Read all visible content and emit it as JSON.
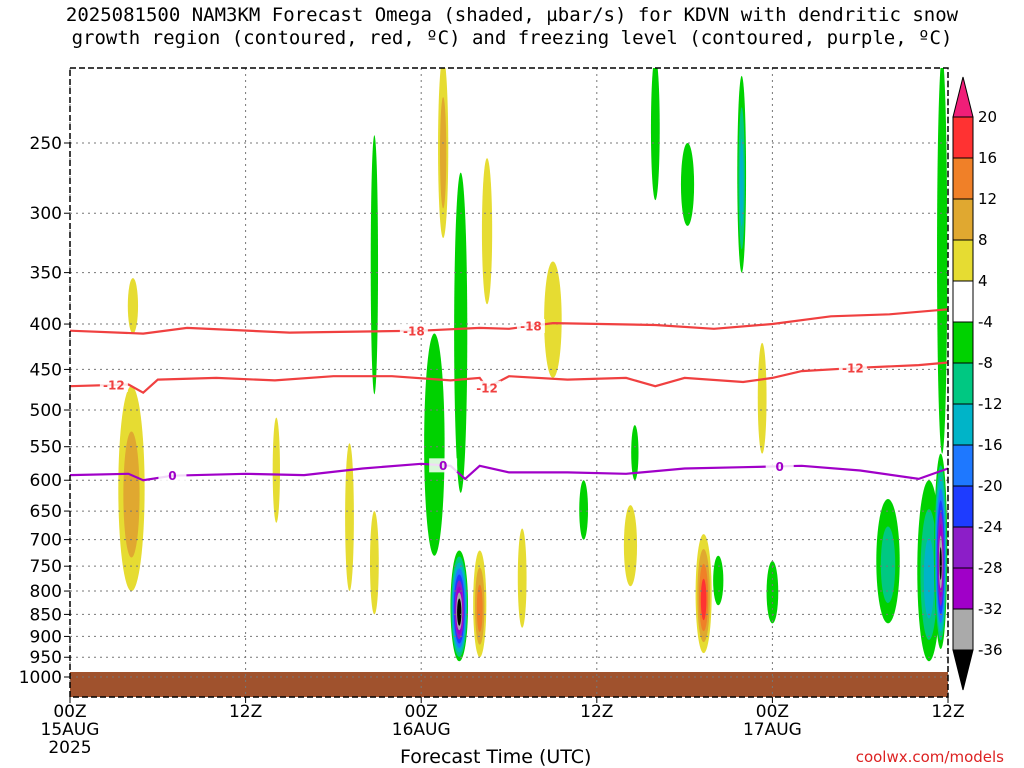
{
  "title": {
    "line1": "2025081500 NAM3KM Forecast Omega (shaded, µbar/s) for KDVN with dendritic snow",
    "line2": "growth region (contoured, red, ºC) and freezing level (contoured, purple, ºC)"
  },
  "credit": "coolwx.com/models",
  "chart_data": {
    "type": "time-height cross section",
    "xlabel": "Forecast Time (UTC)",
    "ylabel": "",
    "x_ticks": [
      {
        "hour": 0,
        "label": "00Z",
        "date": "15AUG",
        "year": "2025"
      },
      {
        "hour": 12,
        "label": "12Z",
        "date": "",
        "year": ""
      },
      {
        "hour": 24,
        "label": "00Z",
        "date": "16AUG",
        "year": ""
      },
      {
        "hour": 36,
        "label": "12Z",
        "date": "",
        "year": ""
      },
      {
        "hour": 48,
        "label": "00Z",
        "date": "17AUG",
        "year": ""
      },
      {
        "hour": 60,
        "label": "12Z",
        "date": "",
        "year": ""
      }
    ],
    "xlim": [
      0,
      60
    ],
    "y_ticks": [
      250,
      300,
      350,
      400,
      450,
      500,
      550,
      600,
      650,
      700,
      750,
      800,
      850,
      900,
      950,
      1000
    ],
    "ylim_hpa": [
      200,
      1000
    ],
    "y_scale": "log-pressure",
    "colorbar": {
      "ticks": [
        20,
        16,
        12,
        8,
        4,
        -4,
        -8,
        -12,
        -16,
        -20,
        -24,
        -28,
        -32,
        -36
      ],
      "bins": [
        {
          "from": 16,
          "to": 20,
          "color": "#ff3232"
        },
        {
          "from": 12,
          "to": 16,
          "color": "#f08028"
        },
        {
          "from": 8,
          "to": 12,
          "color": "#e0a830"
        },
        {
          "from": 4,
          "to": 8,
          "color": "#e6dc32"
        },
        {
          "from": -4,
          "to": 4,
          "color": "#ffffff"
        },
        {
          "from": -8,
          "to": -4,
          "color": "#00d200"
        },
        {
          "from": -12,
          "to": -8,
          "color": "#00c882"
        },
        {
          "from": -16,
          "to": -12,
          "color": "#00b4c8"
        },
        {
          "from": -20,
          "to": -16,
          "color": "#1e78ff"
        },
        {
          "from": -24,
          "to": -20,
          "color": "#1e3cff"
        },
        {
          "from": -28,
          "to": -24,
          "color": "#8c1ec8"
        },
        {
          "from": -32,
          "to": -28,
          "color": "#a000c8"
        },
        {
          "from": -36,
          "to": -32,
          "color": "#aaaaaa"
        }
      ],
      "overflow_high": "#f01e78",
      "overflow_low": "#000000"
    },
    "contours": [
      {
        "label": "-18",
        "color": "#f04040",
        "label_hours": [
          23.5,
          31.5
        ],
        "points": [
          [
            0,
            407
          ],
          [
            5,
            410
          ],
          [
            8,
            404
          ],
          [
            15,
            409
          ],
          [
            24,
            407
          ],
          [
            28,
            404
          ],
          [
            30,
            405
          ],
          [
            33,
            399
          ],
          [
            40,
            401
          ],
          [
            44,
            405
          ],
          [
            48,
            400
          ],
          [
            52,
            392
          ],
          [
            56,
            390
          ],
          [
            60,
            385
          ]
        ]
      },
      {
        "label": "-12",
        "color": "#f04040",
        "label_hours": [
          3,
          28.5,
          53.5
        ],
        "points": [
          [
            0,
            470
          ],
          [
            4,
            468
          ],
          [
            5,
            478
          ],
          [
            6,
            462
          ],
          [
            10,
            460
          ],
          [
            14,
            463
          ],
          [
            18,
            458
          ],
          [
            22,
            458
          ],
          [
            26,
            463
          ],
          [
            28,
            460
          ],
          [
            28.5,
            472
          ],
          [
            30,
            458
          ],
          [
            34,
            462
          ],
          [
            38,
            460
          ],
          [
            40,
            470
          ],
          [
            42,
            460
          ],
          [
            46,
            465
          ],
          [
            48,
            460
          ],
          [
            50,
            452
          ],
          [
            54,
            448
          ],
          [
            58,
            445
          ],
          [
            60,
            442
          ]
        ]
      },
      {
        "label": "0",
        "color": "#a000c8",
        "label_hours": [
          7,
          25.5,
          48.5
        ],
        "points": [
          [
            0,
            592
          ],
          [
            4,
            590
          ],
          [
            5,
            600
          ],
          [
            7,
            593
          ],
          [
            12,
            590
          ],
          [
            16,
            592
          ],
          [
            20,
            582
          ],
          [
            24,
            575
          ],
          [
            26,
            578
          ],
          [
            27,
            598
          ],
          [
            28,
            578
          ],
          [
            30,
            588
          ],
          [
            34,
            588
          ],
          [
            38,
            590
          ],
          [
            42,
            582
          ],
          [
            46,
            580
          ],
          [
            50,
            578
          ],
          [
            54,
            585
          ],
          [
            58,
            598
          ],
          [
            60,
            582
          ]
        ]
      }
    ],
    "omega_blobs": [
      {
        "t": 4.2,
        "p": 620,
        "dt": 0.9,
        "top": 470,
        "bot": 800,
        "v": 12
      },
      {
        "t": 4.3,
        "p": 380,
        "dt": 0.35,
        "top": 355,
        "bot": 410,
        "v": 5
      },
      {
        "t": 14.1,
        "p": 600,
        "dt": 0.25,
        "top": 510,
        "bot": 670,
        "v": 5
      },
      {
        "t": 19.1,
        "p": 700,
        "dt": 0.3,
        "top": 545,
        "bot": 800,
        "v": 6
      },
      {
        "t": 20.8,
        "p": 770,
        "dt": 0.3,
        "top": 650,
        "bot": 850,
        "v": 5
      },
      {
        "t": 20.8,
        "p": 380,
        "dt": 0.25,
        "top": 245,
        "bot": 480,
        "v": -6
      },
      {
        "t": 24.9,
        "p": 560,
        "dt": 0.7,
        "top": 410,
        "bot": 730,
        "v": -7
      },
      {
        "t": 25.5,
        "p": 250,
        "dt": 0.35,
        "top": 200,
        "bot": 320,
        "v": 10
      },
      {
        "t": 26.6,
        "p": 845,
        "dt": 0.6,
        "top": 720,
        "bot": 960,
        "v": -40
      },
      {
        "t": 26.7,
        "p": 430,
        "dt": 0.45,
        "top": 270,
        "bot": 620,
        "v": -7
      },
      {
        "t": 28.0,
        "p": 820,
        "dt": 0.45,
        "top": 720,
        "bot": 950,
        "v": 14
      },
      {
        "t": 28.5,
        "p": 300,
        "dt": 0.35,
        "top": 260,
        "bot": 380,
        "v": 5
      },
      {
        "t": 30.9,
        "p": 800,
        "dt": 0.3,
        "top": 680,
        "bot": 880,
        "v": 5
      },
      {
        "t": 33.0,
        "p": 390,
        "dt": 0.6,
        "top": 340,
        "bot": 460,
        "v": 6
      },
      {
        "t": 35.1,
        "p": 640,
        "dt": 0.3,
        "top": 600,
        "bot": 700,
        "v": -6
      },
      {
        "t": 38.3,
        "p": 700,
        "dt": 0.45,
        "top": 640,
        "bot": 790,
        "v": 8
      },
      {
        "t": 38.6,
        "p": 560,
        "dt": 0.25,
        "top": 520,
        "bot": 600,
        "v": -5
      },
      {
        "t": 40.0,
        "p": 230,
        "dt": 0.3,
        "top": 200,
        "bot": 290,
        "v": -8
      },
      {
        "t": 42.2,
        "p": 290,
        "dt": 0.45,
        "top": 250,
        "bot": 310,
        "v": -7
      },
      {
        "t": 43.3,
        "p": 800,
        "dt": 0.55,
        "top": 690,
        "bot": 940,
        "v": 18
      },
      {
        "t": 44.3,
        "p": 780,
        "dt": 0.35,
        "top": 730,
        "bot": 830,
        "v": -6
      },
      {
        "t": 45.9,
        "p": 230,
        "dt": 0.3,
        "top": 210,
        "bot": 350,
        "v": -14
      },
      {
        "t": 47.3,
        "p": 480,
        "dt": 0.3,
        "top": 420,
        "bot": 560,
        "v": 5
      },
      {
        "t": 48.0,
        "p": 800,
        "dt": 0.4,
        "top": 740,
        "bot": 870,
        "v": -6
      },
      {
        "t": 55.9,
        "p": 740,
        "dt": 0.8,
        "top": 630,
        "bot": 870,
        "v": -12
      },
      {
        "t": 58.7,
        "p": 800,
        "dt": 0.8,
        "top": 600,
        "bot": 960,
        "v": -15
      },
      {
        "t": 59.5,
        "p": 720,
        "dt": 0.45,
        "top": 560,
        "bot": 930,
        "v": -36
      },
      {
        "t": 59.6,
        "p": 350,
        "dt": 0.35,
        "top": 200,
        "bot": 560,
        "v": -7
      }
    ]
  }
}
